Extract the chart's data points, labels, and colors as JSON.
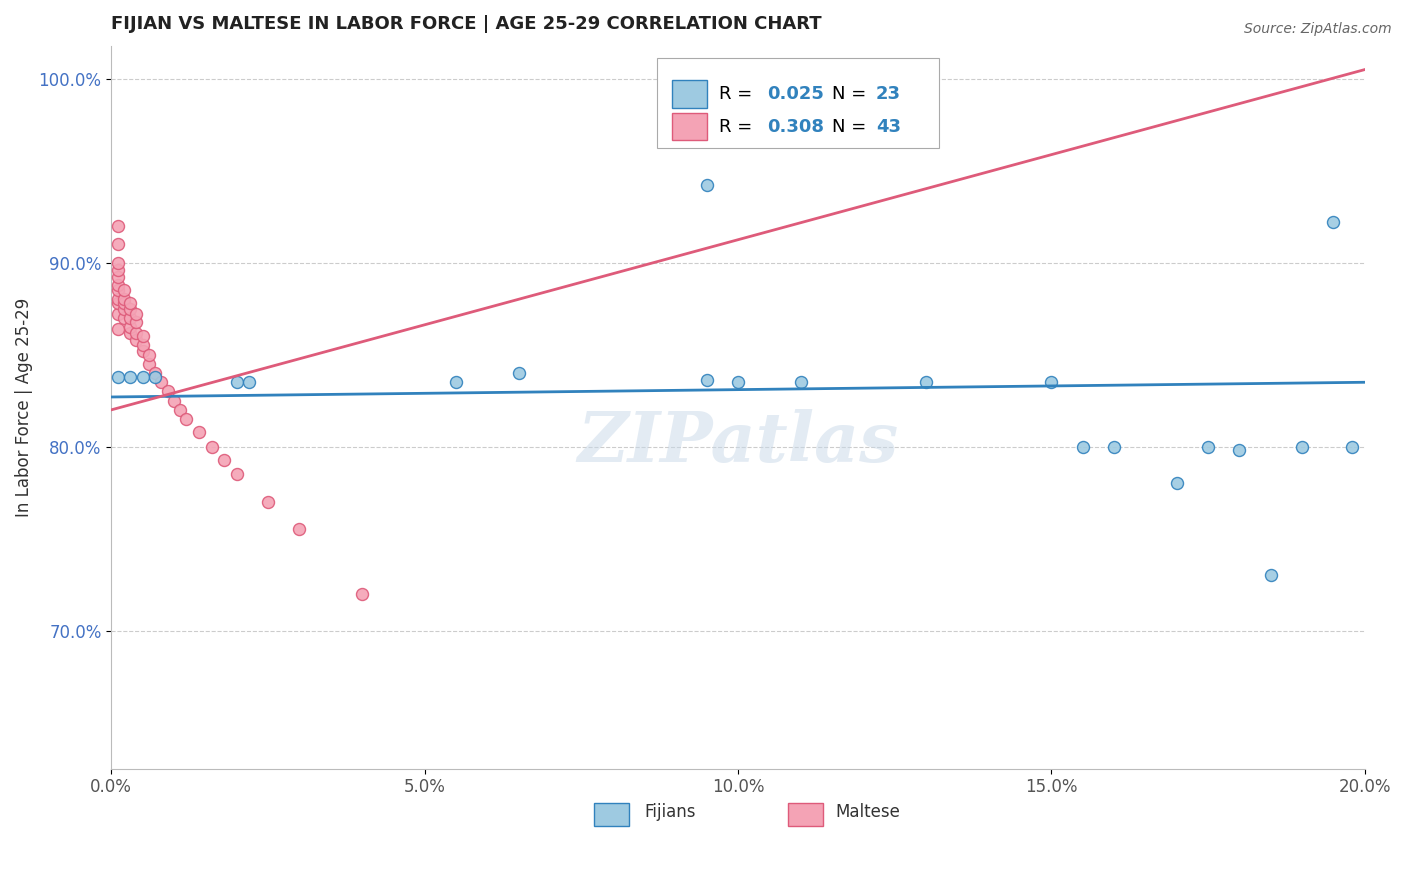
{
  "title": "FIJIAN VS MALTESE IN LABOR FORCE | AGE 25-29 CORRELATION CHART",
  "xlabel": "",
  "ylabel": "In Labor Force | Age 25-29",
  "source_text": "Source: ZipAtlas.com",
  "watermark": "ZIPatlas",
  "fijian_color": "#9ecae1",
  "maltese_color": "#f4a3b5",
  "fijian_line_color": "#3182bd",
  "maltese_line_color": "#de5b7a",
  "fijian_R": 0.025,
  "fijian_N": 23,
  "maltese_R": 0.308,
  "maltese_N": 43,
  "xlim": [
    0.0,
    0.2
  ],
  "ylim": [
    0.625,
    1.018
  ],
  "xtick_labels": [
    "0.0%",
    "5.0%",
    "10.0%",
    "15.0%",
    "20.0%"
  ],
  "xtick_vals": [
    0.0,
    0.05,
    0.1,
    0.15,
    0.2
  ],
  "ytick_labels": [
    "70.0%",
    "80.0%",
    "90.0%",
    "100.0%"
  ],
  "ytick_vals": [
    0.7,
    0.8,
    0.9,
    1.0
  ],
  "fijian_x": [
    0.001,
    0.003,
    0.005,
    0.007,
    0.02,
    0.022,
    0.055,
    0.065,
    0.095,
    0.095,
    0.1,
    0.11,
    0.13,
    0.15,
    0.155,
    0.16,
    0.17,
    0.175,
    0.18,
    0.185,
    0.19,
    0.195,
    0.198
  ],
  "fijian_y": [
    0.838,
    0.838,
    0.838,
    0.838,
    0.835,
    0.835,
    0.835,
    0.84,
    0.942,
    0.836,
    0.835,
    0.835,
    0.835,
    0.835,
    0.8,
    0.8,
    0.78,
    0.8,
    0.798,
    0.73,
    0.8,
    0.922,
    0.8
  ],
  "maltese_x": [
    0.001,
    0.001,
    0.001,
    0.001,
    0.001,
    0.001,
    0.001,
    0.001,
    0.001,
    0.001,
    0.001,
    0.002,
    0.002,
    0.002,
    0.002,
    0.002,
    0.003,
    0.003,
    0.003,
    0.003,
    0.003,
    0.004,
    0.004,
    0.004,
    0.004,
    0.005,
    0.005,
    0.005,
    0.006,
    0.006,
    0.007,
    0.008,
    0.009,
    0.01,
    0.011,
    0.012,
    0.014,
    0.016,
    0.018,
    0.02,
    0.025,
    0.03,
    0.04
  ],
  "maltese_y": [
    0.864,
    0.872,
    0.878,
    0.88,
    0.885,
    0.888,
    0.892,
    0.896,
    0.9,
    0.91,
    0.92,
    0.87,
    0.875,
    0.878,
    0.88,
    0.885,
    0.862,
    0.865,
    0.87,
    0.875,
    0.878,
    0.858,
    0.862,
    0.868,
    0.872,
    0.852,
    0.855,
    0.86,
    0.845,
    0.85,
    0.84,
    0.835,
    0.83,
    0.825,
    0.82,
    0.815,
    0.808,
    0.8,
    0.793,
    0.785,
    0.77,
    0.755,
    0.72
  ],
  "marker_size": 75,
  "marker_edge_width": 1.0,
  "grid_color": "#cccccc",
  "background_color": "#ffffff"
}
